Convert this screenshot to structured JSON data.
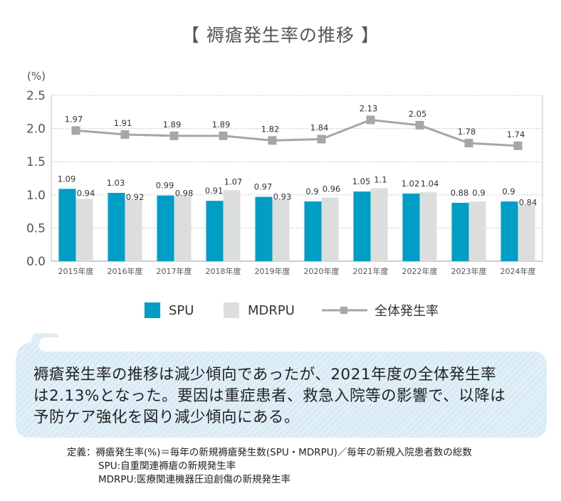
{
  "chart_data": {
    "type": "bar",
    "title": "【 褥瘡発生率の推移 】",
    "ylabel": "(%)",
    "xlabel": "",
    "ylim": [
      0,
      2.5
    ],
    "yticks": [
      "0.0",
      "0.5",
      "1.0",
      "1.5",
      "2.0",
      "2.5"
    ],
    "grid": true,
    "categories": [
      "2015年度",
      "2016年度",
      "2017年度",
      "2018年度",
      "2019年度",
      "2020年度",
      "2021年度",
      "2022年度",
      "2023年度",
      "2024年度"
    ],
    "series": [
      {
        "name": "SPU",
        "type": "bar",
        "color": "#009ec5",
        "values": [
          1.09,
          1.03,
          0.99,
          0.91,
          0.97,
          0.9,
          1.05,
          1.02,
          0.88,
          0.9
        ],
        "labels": [
          "1.09",
          "1.03",
          "0.99",
          "0.91",
          "0.97",
          "0.9",
          "1.05",
          "1.02",
          "0.88",
          "0.9"
        ]
      },
      {
        "name": "MDRPU",
        "type": "bar",
        "color": "#dcdddd",
        "values": [
          0.94,
          0.92,
          0.98,
          1.07,
          0.93,
          0.96,
          1.1,
          1.04,
          0.9,
          0.84
        ],
        "labels": [
          "0.94",
          "0.92",
          "0.98",
          "1.07",
          "0.93",
          "0.96",
          "1.1",
          "1.04",
          "0.9",
          "0.84"
        ]
      },
      {
        "name": "全体発生率",
        "type": "line",
        "color": "#a6a6a6",
        "values": [
          1.97,
          1.91,
          1.89,
          1.89,
          1.82,
          1.84,
          2.13,
          2.05,
          1.78,
          1.74
        ],
        "labels": [
          "1.97",
          "1.91",
          "1.89",
          "1.89",
          "1.82",
          "1.84",
          "2.13",
          "2.05",
          "1.78",
          "1.74"
        ]
      }
    ],
    "legend": [
      "SPU",
      "MDRPU",
      "全体発生率"
    ],
    "legend_position": "bottom"
  },
  "callout": {
    "lines": [
      "褥瘡発生率の推移は減少傾向であったが、2021年度の全体発生率",
      "は2.13%となった。要因は重症患者、救急入院等の影響で、以降は",
      "予防ケア強化を図り減少傾向にある。"
    ],
    "background": "#d9ebf4"
  },
  "definition": {
    "rows": [
      "定義：褥瘡発生率(%)＝毎年の新規褥瘡発生数(SPU・MDRPU)／毎年の新規入院患者数の総数",
      "SPU:自重関連褥瘡の新規発生率",
      "MDRPU:医療関連機器圧迫創傷の新規発生率"
    ]
  }
}
